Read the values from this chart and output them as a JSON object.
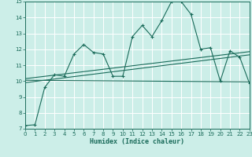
{
  "xlabel": "Humidex (Indice chaleur)",
  "xlim": [
    0,
    23
  ],
  "ylim": [
    7,
    15
  ],
  "yticks": [
    7,
    8,
    9,
    10,
    11,
    12,
    13,
    14,
    15
  ],
  "xticks": [
    0,
    1,
    2,
    3,
    4,
    5,
    6,
    7,
    8,
    9,
    10,
    11,
    12,
    13,
    14,
    15,
    16,
    17,
    18,
    19,
    20,
    21,
    22,
    23
  ],
  "bg_color": "#cceee8",
  "line_color": "#1a6b5a",
  "grid_color": "#ffffff",
  "main_line_x": [
    0,
    1,
    2,
    3,
    4,
    5,
    6,
    7,
    8,
    9,
    10,
    11,
    12,
    13,
    14,
    15,
    16,
    17,
    18,
    19,
    20,
    21,
    22,
    23
  ],
  "main_line_y": [
    7.2,
    7.25,
    9.6,
    10.4,
    10.3,
    11.7,
    12.3,
    11.8,
    11.7,
    10.3,
    10.3,
    12.8,
    13.5,
    12.8,
    13.8,
    15.0,
    15.0,
    14.2,
    12.0,
    12.1,
    10.0,
    11.9,
    11.5,
    9.85
  ],
  "line2_x": [
    0,
    23
  ],
  "line2_y": [
    9.9,
    11.65
  ],
  "line3_x": [
    0,
    23
  ],
  "line3_y": [
    10.15,
    11.85
  ],
  "line4_x": [
    0,
    23
  ],
  "line4_y": [
    10.05,
    9.95
  ]
}
